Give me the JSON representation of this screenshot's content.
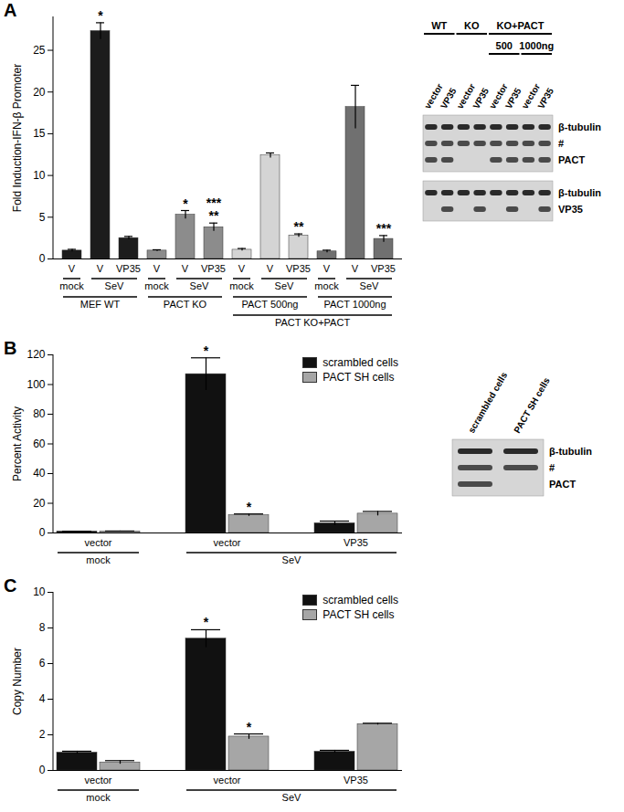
{
  "chart_data": [
    {
      "type": "bar",
      "title": "A",
      "y_label": "Fold Induction-IFN-β Promoter",
      "categories": [
        "V",
        "V",
        "VP35",
        "V",
        "V",
        "VP35",
        "V",
        "V",
        "VP35",
        "V",
        "V",
        "VP35"
      ],
      "values": [
        1.0,
        27.3,
        2.5,
        1.0,
        5.3,
        3.8,
        1.1,
        12.4,
        2.8,
        0.9,
        18.2,
        2.4
      ],
      "errors": [
        0.15,
        1.0,
        0.2,
        0.1,
        0.5,
        0.5,
        0.15,
        0.3,
        0.2,
        0.15,
        2.6,
        0.4
      ],
      "colors": [
        "#1c1c1c",
        "#1c1c1c",
        "#1c1c1c",
        "#8c8c8c",
        "#8c8c8c",
        "#8c8c8c",
        "#d4d4d4",
        "#d4d4d4",
        "#d4d4d4",
        "#707070",
        "#707070",
        "#707070"
      ],
      "annotations": [
        null,
        [
          "*"
        ],
        null,
        null,
        [
          "*"
        ],
        [
          "***",
          "**"
        ],
        null,
        null,
        [
          "**"
        ],
        null,
        null,
        [
          "***"
        ]
      ],
      "ylim": [
        0,
        29
      ],
      "yticks": [
        0,
        5,
        10,
        15,
        20,
        25
      ],
      "x_groups": [
        [
          {
            "label": "mock",
            "from": 0,
            "to": 0
          },
          {
            "label": "SeV",
            "from": 1,
            "to": 2
          },
          {
            "label": "mock",
            "from": 3,
            "to": 3
          },
          {
            "label": "SeV",
            "from": 4,
            "to": 5
          },
          {
            "label": "mock",
            "from": 6,
            "to": 6
          },
          {
            "label": "SeV",
            "from": 7,
            "to": 8
          },
          {
            "label": "mock",
            "from": 9,
            "to": 9
          },
          {
            "label": "SeV",
            "from": 10,
            "to": 11
          }
        ],
        [
          {
            "label": "MEF WT",
            "from": 0,
            "to": 2
          },
          {
            "label": "PACT KO",
            "from": 3,
            "to": 5
          },
          {
            "label": "PACT 500ng",
            "from": 6,
            "to": 8
          },
          {
            "label": "PACT 1000ng",
            "from": 9,
            "to": 11
          }
        ],
        [
          {
            "label": "PACT KO+PACT",
            "from": 6,
            "to": 11
          }
        ]
      ]
    },
    {
      "type": "bar",
      "title": "B",
      "y_label": "Percent Activity",
      "categories": [
        "vector",
        "vector",
        "VP35"
      ],
      "series": [
        {
          "name": "scrambled cells",
          "color": "#111111",
          "values": [
            1.0,
            107,
            6.5
          ],
          "errors": [
            0.2,
            11,
            1.5
          ],
          "annotations": [
            null,
            [
              "*"
            ],
            null
          ]
        },
        {
          "name": "PACT SH cells",
          "color": "#a6a6a6",
          "values": [
            1.0,
            12,
            13
          ],
          "errors": [
            0.3,
            0.8,
            1.5
          ],
          "annotations": [
            null,
            [
              "*"
            ],
            null
          ]
        }
      ],
      "ylim": [
        0,
        120
      ],
      "yticks": [
        0,
        20,
        40,
        60,
        80,
        100,
        120
      ],
      "legend": "top-right",
      "x_groups": [
        [
          {
            "label": "mock",
            "from": 0,
            "to": 0
          },
          {
            "label": "SeV",
            "from": 1,
            "to": 2
          }
        ]
      ]
    },
    {
      "type": "bar",
      "title": "C",
      "y_label": "Copy Number",
      "categories": [
        "vector",
        "vector",
        "VP35"
      ],
      "series": [
        {
          "name": "scrambled cells",
          "color": "#111111",
          "values": [
            1.0,
            7.4,
            1.05
          ],
          "errors": [
            0.08,
            0.5,
            0.08
          ],
          "annotations": [
            null,
            [
              "*"
            ],
            null
          ]
        },
        {
          "name": "PACT SH cells",
          "color": "#a6a6a6",
          "values": [
            0.45,
            1.9,
            2.6
          ],
          "errors": [
            0.1,
            0.15,
            0.05
          ],
          "annotations": [
            null,
            [
              "*"
            ],
            null
          ]
        }
      ],
      "ylim": [
        0,
        10
      ],
      "yticks": [
        0,
        2,
        4,
        6,
        8,
        10
      ],
      "legend": "top-right",
      "x_groups": [
        [
          {
            "label": "mock",
            "from": 0,
            "to": 0
          },
          {
            "label": "SeV",
            "from": 1,
            "to": 2
          }
        ]
      ]
    }
  ],
  "blots": [
    {
      "header_levels": [
        [
          {
            "label": "WT",
            "from": 0,
            "to": 1
          },
          {
            "label": "KO",
            "from": 2,
            "to": 3
          },
          {
            "label": "KO+PACT",
            "from": 4,
            "to": 7
          }
        ],
        [
          {
            "label": "500",
            "from": 4,
            "to": 5
          },
          {
            "label": "1000ng",
            "from": 6,
            "to": 7
          }
        ]
      ],
      "lanes": [
        "vector",
        "VP35",
        "vector",
        "VP35",
        "vector",
        "VP35",
        "vector",
        "VP35"
      ],
      "membranes": [
        {
          "rows": [
            {
              "label": "β-tubulin",
              "present": [
                true,
                true,
                true,
                true,
                true,
                true,
                true,
                true
              ]
            },
            {
              "label": "#",
              "present": [
                true,
                true,
                true,
                true,
                true,
                true,
                true,
                true
              ]
            },
            {
              "label": "PACT",
              "present": [
                true,
                true,
                false,
                false,
                true,
                true,
                true,
                true
              ]
            }
          ]
        },
        {
          "rows": [
            {
              "label": "β-tubulin",
              "present": [
                true,
                true,
                true,
                true,
                true,
                true,
                true,
                true
              ]
            },
            {
              "label": "VP35",
              "present": [
                false,
                true,
                false,
                true,
                false,
                true,
                false,
                true
              ]
            }
          ]
        }
      ]
    },
    {
      "lanes": [
        "scrambled cells",
        "PACT SH cells"
      ],
      "membranes": [
        {
          "rows": [
            {
              "label": "β-tubulin",
              "present": [
                true,
                true
              ]
            },
            {
              "label": "#",
              "present": [
                true,
                true
              ]
            },
            {
              "label": "PACT",
              "present": [
                true,
                false
              ]
            }
          ]
        }
      ]
    }
  ]
}
